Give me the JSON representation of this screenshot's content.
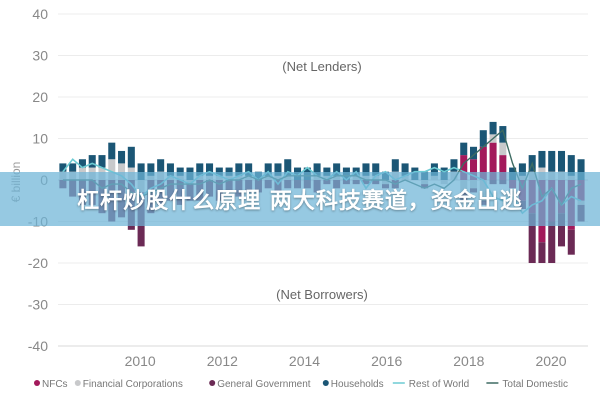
{
  "chart_data": {
    "type": "bar",
    "ylabel": "€ billion",
    "ylim": [
      -40,
      40
    ],
    "yticks": [
      40,
      30,
      20,
      10,
      0,
      -10,
      -20,
      -30,
      -40
    ],
    "xtick_labels": [
      "2010",
      "2012",
      "2014",
      "2016",
      "2018",
      "2020"
    ],
    "xtick_years": [
      2010,
      2012,
      2014,
      2016,
      2018,
      2020
    ],
    "xlim": [
      2008,
      2020.9
    ],
    "annotations": {
      "top": "(Net Lenders)",
      "bottom": "(Net Borrowers)"
    },
    "legend": {
      "placement": "bottom"
    },
    "series": [
      {
        "name": "NFCs",
        "kind": "bar",
        "color": "#a3195b",
        "values": [
          0,
          0,
          0,
          0,
          0,
          0,
          0,
          0,
          0,
          0,
          0,
          0,
          0,
          0,
          0,
          0,
          0,
          0,
          0,
          0,
          0,
          0,
          0,
          0,
          0,
          0,
          0,
          0,
          0,
          0,
          0,
          0,
          0,
          0,
          0,
          0,
          0,
          0,
          0,
          0,
          0,
          6,
          5,
          8,
          9,
          6,
          -2,
          -5,
          -8,
          -15,
          -10,
          -8,
          -12,
          -5
        ]
      },
      {
        "name": "Financial Corporations",
        "kind": "bar",
        "color": "#c8c9cb",
        "values": [
          2,
          2,
          3,
          3,
          3,
          5,
          4,
          3,
          -3,
          1,
          2,
          1,
          1,
          -1,
          1,
          1,
          1,
          1,
          1,
          1,
          0,
          1,
          1,
          1,
          0,
          0,
          1,
          1,
          1,
          0,
          1,
          1,
          1,
          -1,
          2,
          1,
          0,
          -1,
          1,
          -1,
          2,
          -3,
          -2,
          -5,
          2,
          3,
          -2,
          1,
          2,
          3,
          2,
          2,
          1,
          -1
        ]
      },
      {
        "name": "General Government",
        "kind": "bar",
        "color": "#6b2a55",
        "values": [
          -2,
          -4,
          -6,
          -6,
          -8,
          -10,
          -9,
          -12,
          -13,
          -8,
          -6,
          -5,
          -6,
          -4,
          -5,
          -4,
          -5,
          -3,
          -4,
          -3,
          -3,
          -2,
          -3,
          -2,
          -2,
          -2,
          -3,
          -1,
          -2,
          -1,
          -1,
          -1,
          -1,
          -1,
          -2,
          0,
          0,
          -1,
          0,
          0,
          0,
          -2,
          -1,
          -1,
          -1,
          -1,
          0,
          -2,
          -12,
          -5,
          -10,
          -8,
          -6,
          -4
        ]
      },
      {
        "name": "Households",
        "kind": "bar",
        "color": "#1b5675",
        "values": [
          2,
          2,
          2,
          3,
          3,
          4,
          3,
          5,
          4,
          3,
          3,
          3,
          2,
          3,
          3,
          3,
          2,
          2,
          3,
          3,
          2,
          3,
          3,
          4,
          3,
          3,
          3,
          2,
          3,
          3,
          2,
          3,
          3,
          2,
          3,
          3,
          3,
          2,
          3,
          3,
          3,
          3,
          3,
          4,
          3,
          4,
          3,
          3,
          4,
          4,
          5,
          5,
          5,
          5
        ]
      },
      {
        "name": "Rest of World",
        "kind": "line",
        "color": "#6ccbd3",
        "values": [
          2,
          5,
          3,
          4,
          3,
          2,
          1,
          -1,
          -4,
          -2,
          -1,
          1,
          0,
          -1,
          1,
          2,
          1,
          0,
          1,
          2,
          0,
          2,
          -1,
          2,
          1,
          3,
          1,
          0,
          2,
          0,
          2,
          -2,
          1,
          2,
          0,
          1,
          2,
          2,
          3,
          2,
          3,
          2,
          1,
          0,
          -4,
          -5,
          -4,
          -8,
          -6,
          -5,
          -2,
          -6,
          -4,
          -5
        ]
      },
      {
        "name": "Total Domestic",
        "kind": "line",
        "color": "#3d6b62",
        "values": [
          0,
          0,
          0,
          0,
          -2,
          -1,
          -1,
          -3,
          -4,
          -3,
          -2,
          -1,
          -1,
          -1,
          -1,
          0,
          -1,
          0,
          0,
          1,
          0,
          1,
          0,
          1,
          1,
          1,
          1,
          0,
          1,
          1,
          1,
          0,
          0,
          0,
          -1,
          0,
          -1,
          -2,
          -1,
          -2,
          0,
          4,
          6,
          8,
          10,
          12,
          4,
          -2,
          4,
          -4,
          -2,
          -6,
          -2,
          -1
        ]
      }
    ]
  },
  "banner": {
    "text": "杠杆炒股什么原理 两大科技赛道，资金出逃"
  }
}
